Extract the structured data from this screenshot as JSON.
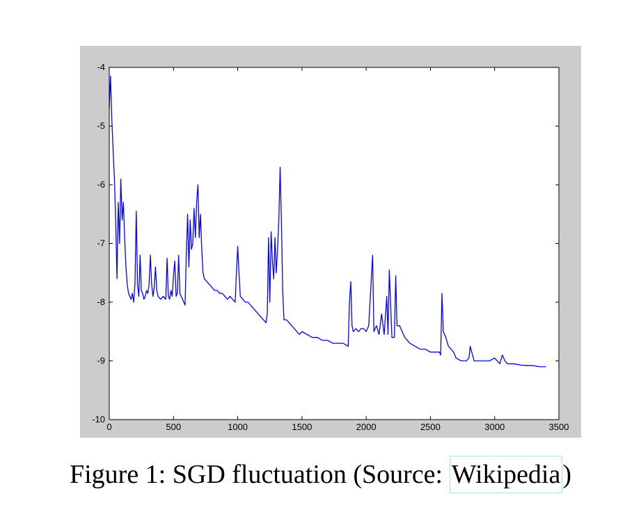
{
  "caption": {
    "prefix": "Figure 1: SGD fluctuation (Source: ",
    "link_text": "Wikipedia",
    "suffix": ")"
  },
  "colors": {
    "frame_background": "#cccccc",
    "plot_background": "#ffffff",
    "series_color": "#0000ff",
    "link_border": "#9de6ee"
  },
  "chart_data": {
    "type": "line",
    "title": "",
    "xlabel": "",
    "ylabel": "",
    "xlim": [
      0,
      3500
    ],
    "ylim": [
      -10,
      -4
    ],
    "grid": false,
    "x_ticks": [
      0,
      500,
      1000,
      1500,
      2000,
      2500,
      3000,
      3500
    ],
    "y_ticks": [
      -4,
      -5,
      -6,
      -7,
      -8,
      -9,
      -10
    ],
    "x_tick_labels": [
      "0",
      "500",
      "1000",
      "1500",
      "2000",
      "2500",
      "3000",
      "3500"
    ],
    "y_tick_labels": [
      "-4",
      "-5",
      "-6",
      "-7",
      "-8",
      "-9",
      "-10"
    ],
    "series": [
      {
        "color": "#0000ff",
        "x": [
          0,
          10,
          20,
          30,
          40,
          50,
          60,
          70,
          80,
          90,
          100,
          110,
          120,
          130,
          140,
          150,
          160,
          170,
          180,
          190,
          200,
          210,
          220,
          230,
          240,
          250,
          260,
          270,
          280,
          290,
          300,
          310,
          320,
          330,
          340,
          350,
          360,
          370,
          380,
          400,
          420,
          440,
          450,
          460,
          470,
          480,
          490,
          500,
          510,
          520,
          530,
          540,
          550,
          560,
          570,
          580,
          590,
          600,
          610,
          620,
          630,
          640,
          650,
          660,
          670,
          680,
          690,
          700,
          710,
          720,
          730,
          740,
          760,
          780,
          800,
          820,
          840,
          860,
          880,
          900,
          920,
          940,
          960,
          980,
          990,
          1000,
          1010,
          1020,
          1040,
          1060,
          1080,
          1100,
          1120,
          1140,
          1160,
          1180,
          1200,
          1220,
          1230,
          1240,
          1250,
          1260,
          1270,
          1280,
          1290,
          1300,
          1310,
          1320,
          1330,
          1340,
          1350,
          1360,
          1380,
          1400,
          1420,
          1440,
          1460,
          1480,
          1500,
          1540,
          1580,
          1620,
          1660,
          1700,
          1740,
          1780,
          1820,
          1860,
          1870,
          1880,
          1890,
          1900,
          1920,
          1940,
          1960,
          1980,
          2000,
          2020,
          2040,
          2050,
          2060,
          2080,
          2100,
          2120,
          2140,
          2160,
          2170,
          2180,
          2200,
          2220,
          2230,
          2240,
          2260,
          2280,
          2300,
          2340,
          2380,
          2420,
          2460,
          2500,
          2540,
          2570,
          2580,
          2590,
          2600,
          2620,
          2640,
          2660,
          2680,
          2700,
          2740,
          2780,
          2800,
          2810,
          2840,
          2880,
          2920,
          2960,
          3000,
          3040,
          3060,
          3080,
          3100,
          3150,
          3200,
          3250,
          3300,
          3350,
          3400
        ],
        "y": [
          -4.7,
          -4.15,
          -4.9,
          -5.4,
          -5.9,
          -6.6,
          -7.6,
          -6.3,
          -7.0,
          -5.9,
          -6.6,
          -6.3,
          -6.9,
          -7.4,
          -7.7,
          -7.85,
          -7.9,
          -7.95,
          -7.85,
          -8.0,
          -7.7,
          -6.45,
          -7.7,
          -7.9,
          -7.2,
          -7.8,
          -7.85,
          -7.95,
          -7.9,
          -7.8,
          -7.85,
          -7.7,
          -7.2,
          -7.7,
          -7.9,
          -7.75,
          -7.4,
          -7.8,
          -7.9,
          -7.95,
          -7.9,
          -7.95,
          -7.25,
          -7.9,
          -7.95,
          -7.8,
          -7.9,
          -7.55,
          -7.3,
          -7.9,
          -7.85,
          -7.2,
          -7.85,
          -7.9,
          -7.95,
          -8.0,
          -8.05,
          -7.2,
          -6.5,
          -7.4,
          -6.6,
          -7.1,
          -7.0,
          -6.4,
          -6.9,
          -6.3,
          -6.0,
          -6.9,
          -6.5,
          -7.1,
          -7.5,
          -7.6,
          -7.65,
          -7.7,
          -7.75,
          -7.8,
          -7.8,
          -7.85,
          -7.85,
          -7.9,
          -7.95,
          -7.9,
          -7.95,
          -8.0,
          -7.5,
          -7.05,
          -7.5,
          -7.9,
          -7.95,
          -8.0,
          -8.0,
          -8.05,
          -8.1,
          -8.15,
          -8.2,
          -8.25,
          -8.3,
          -8.35,
          -8.2,
          -6.9,
          -8.0,
          -6.8,
          -7.3,
          -7.6,
          -6.9,
          -7.5,
          -7.1,
          -6.6,
          -5.7,
          -6.6,
          -7.8,
          -8.3,
          -8.3,
          -8.35,
          -8.4,
          -8.45,
          -8.5,
          -8.55,
          -8.5,
          -8.55,
          -8.6,
          -8.6,
          -8.65,
          -8.65,
          -8.7,
          -8.7,
          -8.7,
          -8.75,
          -8.0,
          -7.65,
          -8.4,
          -8.5,
          -8.45,
          -8.5,
          -8.45,
          -8.45,
          -8.5,
          -8.4,
          -7.6,
          -7.2,
          -8.5,
          -8.4,
          -8.55,
          -8.2,
          -8.55,
          -7.9,
          -8.55,
          -7.45,
          -8.6,
          -8.6,
          -7.55,
          -8.4,
          -8.4,
          -8.5,
          -8.6,
          -8.7,
          -8.75,
          -8.8,
          -8.8,
          -8.85,
          -8.85,
          -8.85,
          -8.9,
          -7.85,
          -8.5,
          -8.6,
          -8.75,
          -8.8,
          -8.85,
          -8.95,
          -9.0,
          -9.0,
          -8.95,
          -8.75,
          -9.0,
          -9.0,
          -9.0,
          -9.0,
          -8.95,
          -9.05,
          -8.9,
          -9.0,
          -9.05,
          -9.05,
          -9.07,
          -9.08,
          -9.08,
          -9.1,
          -9.1
        ]
      }
    ]
  }
}
